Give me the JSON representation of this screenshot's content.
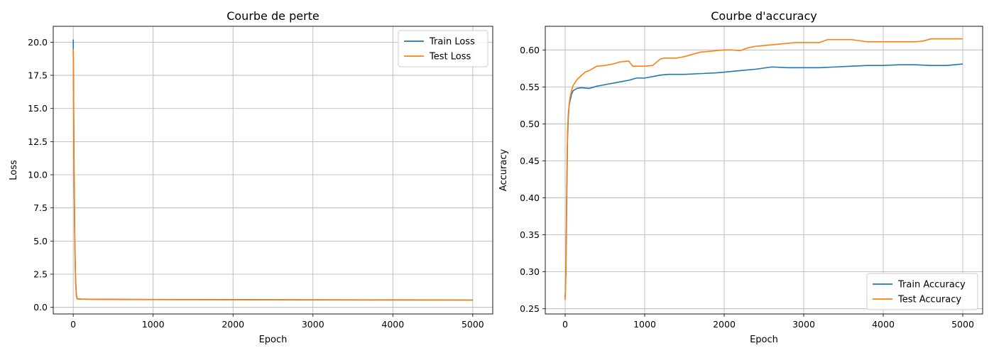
{
  "chart_data": [
    {
      "type": "line",
      "title": "Courbe de perte",
      "xlabel": "Epoch",
      "ylabel": "Loss",
      "xlim": [
        -250,
        5250
      ],
      "ylim": [
        -0.5,
        21.2
      ],
      "xticks": [
        0,
        1000,
        2000,
        3000,
        4000,
        5000
      ],
      "yticks": [
        0.0,
        2.5,
        5.0,
        7.5,
        10.0,
        12.5,
        15.0,
        17.5,
        20.0
      ],
      "ytick_labels": [
        "0.0",
        "2.5",
        "5.0",
        "7.5",
        "10.0",
        "12.5",
        "15.0",
        "17.5",
        "20.0"
      ],
      "grid": true,
      "legend": "top-right",
      "series": [
        {
          "name": "Train Loss",
          "color": "#1f77b4",
          "x": [
            0,
            5,
            10,
            20,
            30,
            40,
            50,
            100,
            200,
            500,
            1000,
            2000,
            3000,
            4000,
            5000
          ],
          "y": [
            20.2,
            16.0,
            11.0,
            5.0,
            2.0,
            0.9,
            0.65,
            0.62,
            0.61,
            0.6,
            0.59,
            0.58,
            0.57,
            0.56,
            0.55
          ]
        },
        {
          "name": "Test Loss",
          "color": "#ff7f0e",
          "x": [
            0,
            5,
            10,
            20,
            30,
            40,
            50,
            100,
            200,
            500,
            1000,
            2000,
            3000,
            4000,
            5000
          ],
          "y": [
            19.5,
            15.0,
            10.0,
            4.5,
            1.8,
            0.85,
            0.63,
            0.61,
            0.6,
            0.59,
            0.58,
            0.57,
            0.56,
            0.55,
            0.55
          ]
        }
      ]
    },
    {
      "type": "line",
      "title": "Courbe d'accuracy",
      "xlabel": "Epoch",
      "ylabel": "Accuracy",
      "xlim": [
        -250,
        5250
      ],
      "ylim": [
        0.243,
        0.632
      ],
      "xticks": [
        0,
        1000,
        2000,
        3000,
        4000,
        5000
      ],
      "yticks": [
        0.25,
        0.3,
        0.35,
        0.4,
        0.45,
        0.5,
        0.55,
        0.6
      ],
      "ytick_labels": [
        "0.25",
        "0.30",
        "0.35",
        "0.40",
        "0.45",
        "0.50",
        "0.55",
        "0.60"
      ],
      "grid": true,
      "legend": "bottom-right",
      "series": [
        {
          "name": "Train Accuracy",
          "color": "#1f77b4",
          "x": [
            0,
            10,
            20,
            30,
            40,
            50,
            60,
            80,
            100,
            150,
            200,
            300,
            400,
            500,
            700,
            800,
            900,
            1000,
            1100,
            1200,
            1300,
            1500,
            1700,
            1900,
            2000,
            2200,
            2400,
            2600,
            2800,
            3000,
            3200,
            3400,
            3600,
            3800,
            4000,
            4200,
            4400,
            4600,
            4800,
            5000
          ],
          "y": [
            0.265,
            0.3,
            0.4,
            0.48,
            0.51,
            0.525,
            0.53,
            0.54,
            0.545,
            0.548,
            0.549,
            0.548,
            0.551,
            0.553,
            0.557,
            0.559,
            0.562,
            0.562,
            0.564,
            0.566,
            0.567,
            0.567,
            0.568,
            0.569,
            0.57,
            0.572,
            0.574,
            0.577,
            0.576,
            0.576,
            0.576,
            0.577,
            0.578,
            0.579,
            0.579,
            0.58,
            0.58,
            0.579,
            0.579,
            0.581
          ]
        },
        {
          "name": "Test Accuracy",
          "color": "#ff7f0e",
          "x": [
            0,
            10,
            20,
            30,
            40,
            50,
            60,
            80,
            100,
            150,
            200,
            250,
            300,
            400,
            500,
            600,
            700,
            800,
            850,
            1000,
            1100,
            1200,
            1250,
            1400,
            1500,
            1600,
            1700,
            1800,
            1900,
            2000,
            2100,
            2200,
            2300,
            2400,
            2500,
            2600,
            2800,
            2900,
            3000,
            3200,
            3300,
            3400,
            3600,
            3800,
            4000,
            4200,
            4400,
            4500,
            4600,
            4800,
            5000
          ],
          "y": [
            0.262,
            0.31,
            0.42,
            0.49,
            0.515,
            0.525,
            0.535,
            0.545,
            0.552,
            0.56,
            0.565,
            0.57,
            0.572,
            0.578,
            0.579,
            0.581,
            0.584,
            0.585,
            0.578,
            0.578,
            0.579,
            0.588,
            0.589,
            0.589,
            0.591,
            0.594,
            0.597,
            0.598,
            0.599,
            0.6,
            0.6,
            0.599,
            0.603,
            0.605,
            0.606,
            0.607,
            0.609,
            0.61,
            0.61,
            0.61,
            0.614,
            0.614,
            0.614,
            0.611,
            0.611,
            0.611,
            0.611,
            0.612,
            0.615,
            0.615,
            0.615
          ]
        }
      ]
    }
  ]
}
